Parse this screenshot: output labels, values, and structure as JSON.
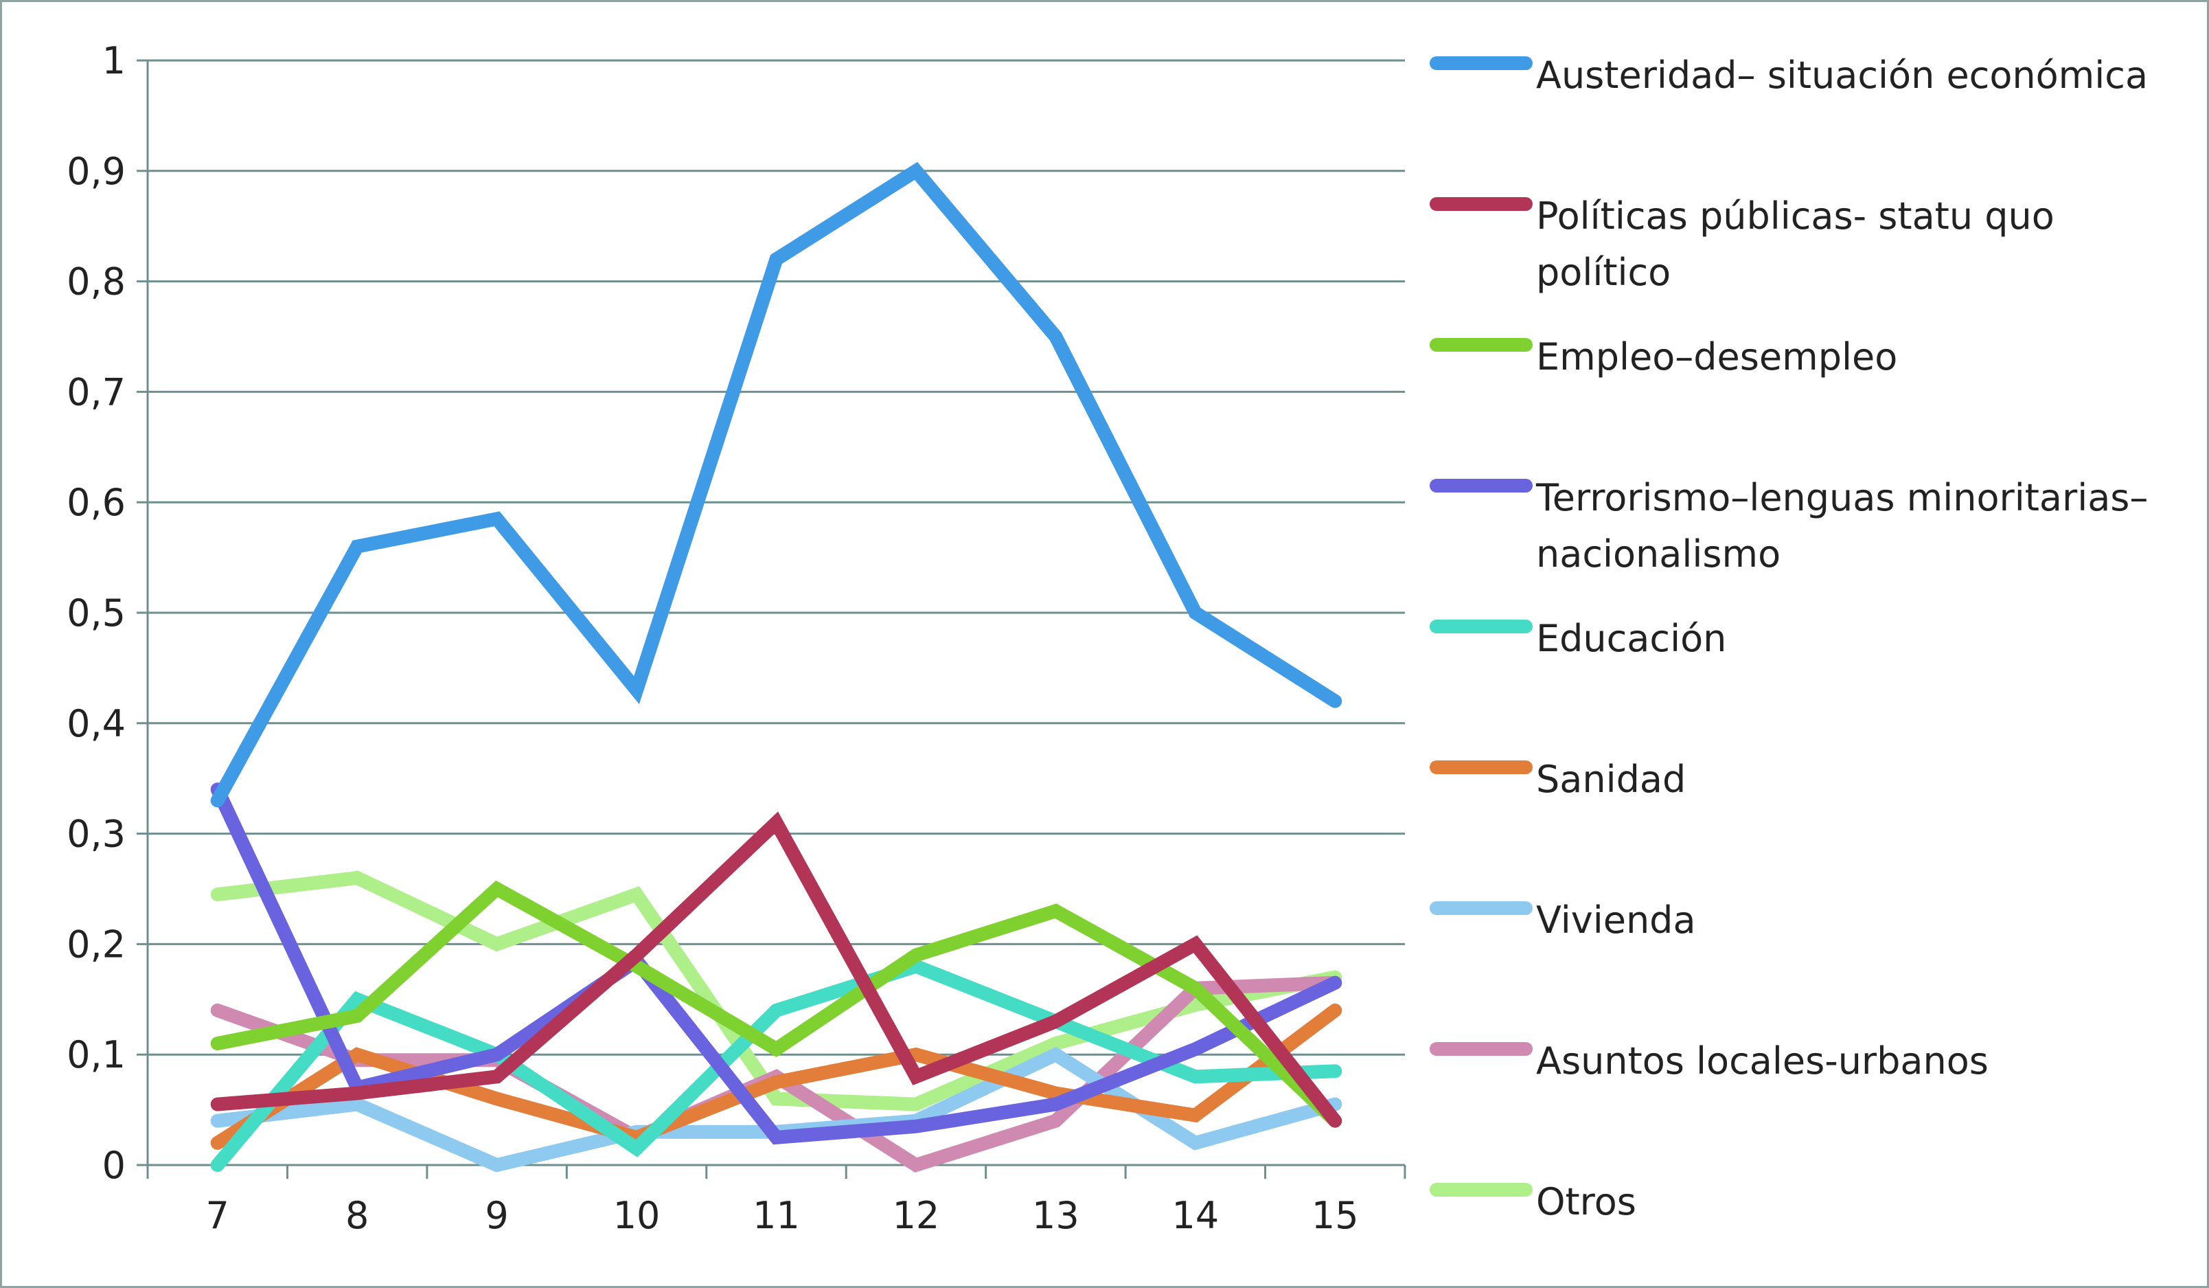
{
  "chart_data": {
    "type": "line",
    "title": "",
    "xlabel": "",
    "ylabel": "",
    "categories": [
      "7",
      "8",
      "9",
      "10",
      "11",
      "12",
      "13",
      "14",
      "15"
    ],
    "ylim": [
      0,
      1
    ],
    "yticks": [
      "0",
      "0,1",
      "0,2",
      "0,3",
      "0,4",
      "0,5",
      "0,6",
      "0,7",
      "0,8",
      "0,9",
      "1"
    ],
    "grid": true,
    "legend_position": "right",
    "series": [
      {
        "name": "Austeridad– situación económica",
        "legend_lines": [
          "Austeridad– situación económica"
        ],
        "color": "#3f9be6",
        "values": [
          0.33,
          0.56,
          0.585,
          0.43,
          0.82,
          0.9,
          0.75,
          0.5,
          0.42
        ]
      },
      {
        "name": "Políticas públicas- statu quo político",
        "legend_lines": [
          "Políticas públicas- statu quo",
          "político"
        ],
        "color": "#b23558",
        "values": [
          0.055,
          0.065,
          0.08,
          0.19,
          0.31,
          0.08,
          0.13,
          0.2,
          0.04
        ]
      },
      {
        "name": "Empleo–desempleo",
        "legend_lines": [
          "Empleo–desempleo"
        ],
        "color": "#7fd130",
        "values": [
          0.11,
          0.135,
          0.25,
          0.18,
          0.105,
          0.19,
          0.23,
          0.16,
          0.04
        ]
      },
      {
        "name": "Terrorismo–lenguas minoritarias–nacionalismo",
        "legend_lines": [
          "Terrorismo–lenguas minoritarias–",
          "nacionalismo"
        ],
        "color": "#6963e0",
        "values": [
          0.34,
          0.07,
          0.1,
          0.185,
          0.025,
          0.035,
          0.055,
          0.105,
          0.165
        ]
      },
      {
        "name": "Educación",
        "legend_lines": [
          "Educación"
        ],
        "color": "#44dcc4",
        "values": [
          0.0,
          0.15,
          0.1,
          0.015,
          0.14,
          0.18,
          0.13,
          0.08,
          0.085
        ]
      },
      {
        "name": "Sanidad",
        "legend_lines": [
          "Sanidad"
        ],
        "color": "#e37d3a",
        "values": [
          0.02,
          0.1,
          0.06,
          0.025,
          0.075,
          0.1,
          0.065,
          0.045,
          0.14
        ]
      },
      {
        "name": "Vivienda",
        "legend_lines": [
          "Vivienda"
        ],
        "color": "#8ec9f0",
        "values": [
          0.04,
          0.055,
          0.0,
          0.03,
          0.03,
          0.04,
          0.1,
          0.02,
          0.055
        ]
      },
      {
        "name": "Asuntos locales-urbanos",
        "legend_lines": [
          "Asuntos locales-urbanos"
        ],
        "color": "#d08ab2",
        "values": [
          0.14,
          0.095,
          0.095,
          0.025,
          0.08,
          0.0,
          0.04,
          0.16,
          0.165
        ]
      },
      {
        "name": "Otros",
        "legend_lines": [
          "Otros"
        ],
        "color": "#aeef8a",
        "values": [
          0.245,
          0.26,
          0.2,
          0.245,
          0.06,
          0.055,
          0.11,
          0.145,
          0.17
        ]
      }
    ]
  }
}
